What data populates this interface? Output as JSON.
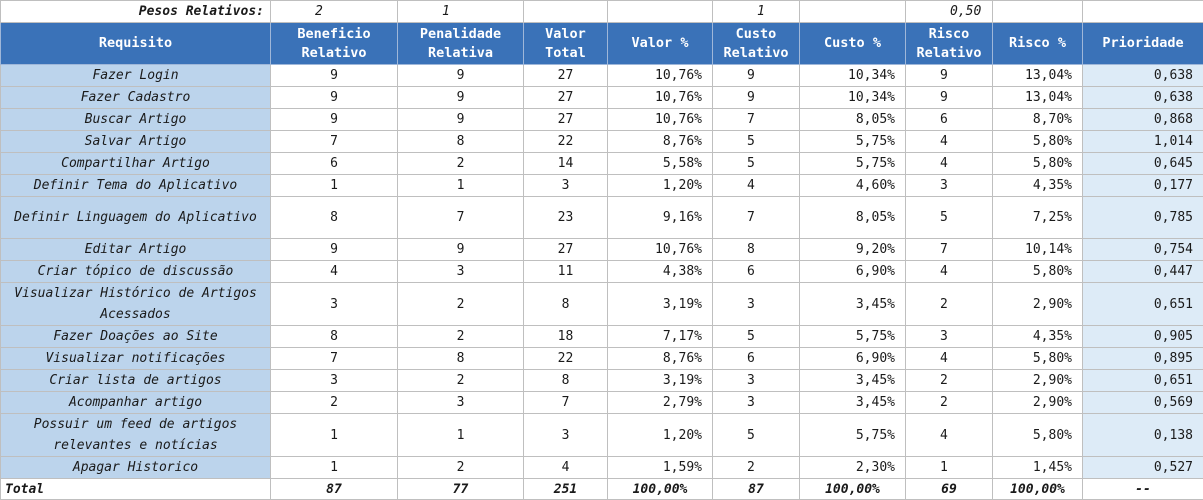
{
  "weights": {
    "label": "Pesos Relativos:",
    "beneficio": "2",
    "penalidade": "1",
    "custo": "1",
    "risco": "0,50"
  },
  "headers": [
    "Requisito",
    "Beneficio Relativo",
    "Penalidade Relativa",
    "Valor Total",
    "Valor %",
    "Custo Relativo",
    "Custo %",
    "Risco Relativo",
    "Risco %",
    "Prioridade"
  ],
  "rows": [
    {
      "req": "Fazer Login",
      "ben": "9",
      "pen": "9",
      "vt": "27",
      "vp": "10,76%",
      "cr": "9",
      "cp": "10,34%",
      "rr": "9",
      "rp": "13,04%",
      "pr": "0,638"
    },
    {
      "req": "Fazer Cadastro",
      "ben": "9",
      "pen": "9",
      "vt": "27",
      "vp": "10,76%",
      "cr": "9",
      "cp": "10,34%",
      "rr": "9",
      "rp": "13,04%",
      "pr": "0,638"
    },
    {
      "req": "Buscar Artigo",
      "ben": "9",
      "pen": "9",
      "vt": "27",
      "vp": "10,76%",
      "cr": "7",
      "cp": "8,05%",
      "rr": "6",
      "rp": "8,70%",
      "pr": "0,868"
    },
    {
      "req": "Salvar Artigo",
      "ben": "7",
      "pen": "8",
      "vt": "22",
      "vp": "8,76%",
      "cr": "5",
      "cp": "5,75%",
      "rr": "4",
      "rp": "5,80%",
      "pr": "1,014"
    },
    {
      "req": "Compartilhar Artigo",
      "ben": "6",
      "pen": "2",
      "vt": "14",
      "vp": "5,58%",
      "cr": "5",
      "cp": "5,75%",
      "rr": "4",
      "rp": "5,80%",
      "pr": "0,645"
    },
    {
      "req": "Definir Tema do Aplicativo",
      "ben": "1",
      "pen": "1",
      "vt": "3",
      "vp": "1,20%",
      "cr": "4",
      "cp": "4,60%",
      "rr": "3",
      "rp": "4,35%",
      "pr": "0,177"
    },
    {
      "req": "Definir Linguagem do Aplicativo",
      "ben": "8",
      "pen": "7",
      "vt": "23",
      "vp": "9,16%",
      "cr": "7",
      "cp": "8,05%",
      "rr": "5",
      "rp": "7,25%",
      "pr": "0,785"
    },
    {
      "req": "Editar Artigo",
      "ben": "9",
      "pen": "9",
      "vt": "27",
      "vp": "10,76%",
      "cr": "8",
      "cp": "9,20%",
      "rr": "7",
      "rp": "10,14%",
      "pr": "0,754"
    },
    {
      "req": "Criar tópico de discussão",
      "ben": "4",
      "pen": "3",
      "vt": "11",
      "vp": "4,38%",
      "cr": "6",
      "cp": "6,90%",
      "rr": "4",
      "rp": "5,80%",
      "pr": "0,447"
    },
    {
      "req": "Visualizar Histórico de Artigos Acessados",
      "ben": "3",
      "pen": "2",
      "vt": "8",
      "vp": "3,19%",
      "cr": "3",
      "cp": "3,45%",
      "rr": "2",
      "rp": "2,90%",
      "pr": "0,651"
    },
    {
      "req": "Fazer Doações ao Site",
      "ben": "8",
      "pen": "2",
      "vt": "18",
      "vp": "7,17%",
      "cr": "5",
      "cp": "5,75%",
      "rr": "3",
      "rp": "4,35%",
      "pr": "0,905"
    },
    {
      "req": "Visualizar notificações",
      "ben": "7",
      "pen": "8",
      "vt": "22",
      "vp": "8,76%",
      "cr": "6",
      "cp": "6,90%",
      "rr": "4",
      "rp": "5,80%",
      "pr": "0,895"
    },
    {
      "req": "Criar lista de artigos",
      "ben": "3",
      "pen": "2",
      "vt": "8",
      "vp": "3,19%",
      "cr": "3",
      "cp": "3,45%",
      "rr": "2",
      "rp": "2,90%",
      "pr": "0,651"
    },
    {
      "req": "Acompanhar artigo",
      "ben": "2",
      "pen": "3",
      "vt": "7",
      "vp": "2,79%",
      "cr": "3",
      "cp": "3,45%",
      "rr": "2",
      "rp": "2,90%",
      "pr": "0,569"
    },
    {
      "req": "Possuir um feed de artigos relevantes e notícias",
      "ben": "1",
      "pen": "1",
      "vt": "3",
      "vp": "1,20%",
      "cr": "5",
      "cp": "5,75%",
      "rr": "4",
      "rp": "5,80%",
      "pr": "0,138"
    },
    {
      "req": "Apagar Historico",
      "ben": "1",
      "pen": "2",
      "vt": "4",
      "vp": "1,59%",
      "cr": "2",
      "cp": "2,30%",
      "rr": "1",
      "rp": "1,45%",
      "pr": "0,527"
    }
  ],
  "totals": {
    "label": "Total",
    "ben": "87",
    "pen": "77",
    "vt": "251",
    "vp": "100,00%",
    "cr": "87",
    "cp": "100,00%",
    "rr": "69",
    "rp": "100,00%",
    "pr": "--"
  }
}
